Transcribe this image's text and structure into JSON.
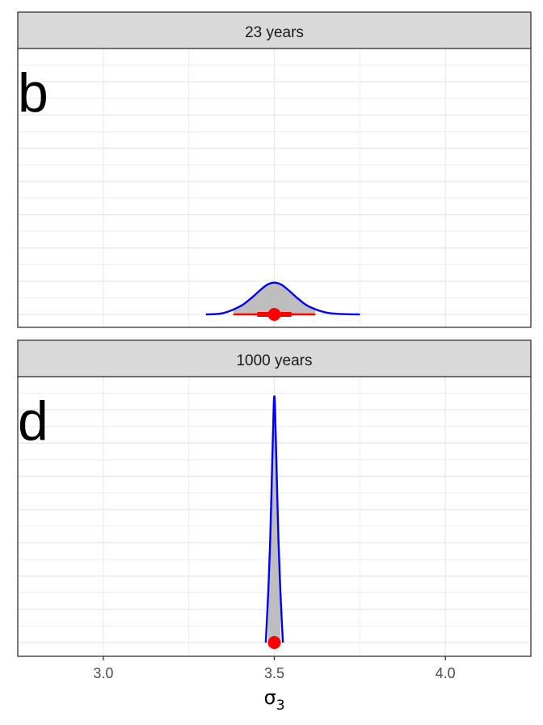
{
  "chart_data": [
    {
      "type": "area",
      "panel_title": "23 years",
      "panel_letter": "b",
      "density": {
        "x": [
          3.3,
          3.35,
          3.4,
          3.43,
          3.46,
          3.48,
          3.5,
          3.52,
          3.54,
          3.57,
          3.6,
          3.65,
          3.7,
          3.75
        ],
        "y": [
          0.0,
          0.04,
          0.25,
          0.48,
          0.76,
          0.92,
          0.98,
          0.92,
          0.76,
          0.48,
          0.25,
          0.06,
          0.01,
          0.0
        ]
      },
      "fill_range": [
        3.38,
        3.62
      ],
      "point_estimate": 3.5,
      "interval_inner": [
        3.45,
        3.55
      ],
      "interval_outer": [
        3.38,
        3.62
      ],
      "ylim": [
        0,
        8.2
      ]
    },
    {
      "type": "area",
      "panel_title": "1000 years",
      "panel_letter": "d",
      "density": {
        "x": [
          3.475,
          3.482,
          3.488,
          3.494,
          3.498,
          3.5,
          3.502,
          3.506,
          3.512,
          3.518,
          3.525
        ],
        "y": [
          0.0,
          0.2,
          0.42,
          0.74,
          0.95,
          1.0,
          0.95,
          0.74,
          0.42,
          0.2,
          0.0
        ]
      },
      "fill_range": [
        3.482,
        3.518
      ],
      "point_estimate": 3.5,
      "interval_inner": [
        3.497,
        3.503
      ],
      "interval_outer": [
        3.492,
        3.508
      ],
      "ylim": [
        0,
        1.08
      ]
    }
  ],
  "x_axis": {
    "label_symbol": "σ",
    "label_subscript": "3",
    "xlim": [
      2.75,
      4.25
    ],
    "major_ticks": [
      3.0,
      3.5,
      4.0
    ],
    "tick_labels": [
      "3.0",
      "3.5",
      "4.0"
    ],
    "minor_ticks": [
      2.75,
      3.25,
      3.75,
      4.25
    ]
  },
  "grid": true,
  "colors": {
    "density_line": "#0000ff",
    "density_fill": "#bebebe",
    "point_interval": "#ff0000",
    "strip_fill": "#d9d9d9",
    "grid": "#ebebeb",
    "border": "#333333"
  }
}
